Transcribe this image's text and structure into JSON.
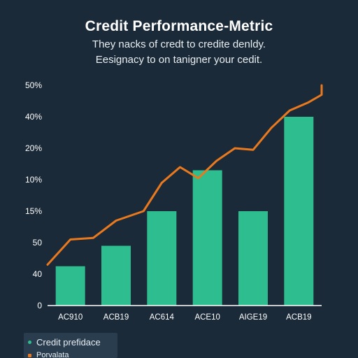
{
  "header": {
    "title": "Credit Performance-Metric",
    "subtitle_line1": "They nacks of credt to credite denldy.",
    "subtitle_line2": "Eesignacy to on tanigner your cedit."
  },
  "legend": {
    "items": [
      {
        "label": "Credit prefidace",
        "color": "#2ebd8f"
      },
      {
        "label": "Porvalata",
        "color": "#e8791e"
      }
    ]
  },
  "chart_data": {
    "type": "bar",
    "title": "Credit Performance-Metric",
    "categories": [
      "AC910",
      "ACB19",
      "AC614",
      "ACE10",
      "AIGE19",
      "ACB19"
    ],
    "y_tick_labels": [
      "0",
      "40",
      "50",
      "15%",
      "10%",
      "20%",
      "40%",
      "50%"
    ],
    "ylim": [
      0,
      7
    ],
    "series": [
      {
        "name": "Credit prefidace",
        "type": "bar",
        "color": "#2ebd8f",
        "values": [
          1.25,
          1.9,
          3.0,
          4.3,
          3.0,
          6.0
        ]
      },
      {
        "name": "Porvalata",
        "type": "line",
        "color": "#e8791e",
        "x": [
          -0.5,
          0.0,
          0.5,
          1.0,
          1.6,
          2.0,
          2.4,
          2.8,
          3.2,
          3.6,
          4.0,
          4.4,
          4.8,
          5.2,
          5.6,
          6.0
        ],
        "values": [
          1.3,
          2.1,
          2.15,
          2.7,
          3.0,
          3.9,
          4.4,
          4.05,
          4.6,
          5.0,
          4.95,
          5.65,
          6.2,
          6.45,
          6.7,
          7.0
        ]
      }
    ],
    "grid": false,
    "legend_position": "bottom-left"
  }
}
